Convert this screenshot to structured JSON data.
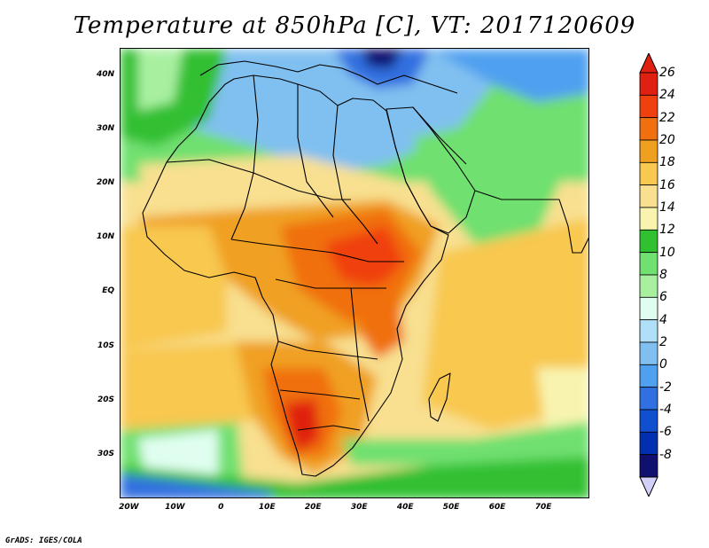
{
  "title": "Temperature at 850hPa [C], VT: 2017120609",
  "credit": "GrADS: IGES/COLA",
  "map": {
    "lon_range": [
      -22,
      80
    ],
    "lat_range": [
      -38,
      45
    ],
    "lat_ticks": [
      {
        "value": 40,
        "label": "40N"
      },
      {
        "value": 30,
        "label": "30N"
      },
      {
        "value": 20,
        "label": "20N"
      },
      {
        "value": 10,
        "label": "10N"
      },
      {
        "value": 0,
        "label": "EQ"
      },
      {
        "value": -10,
        "label": "10S"
      },
      {
        "value": -20,
        "label": "20S"
      },
      {
        "value": -30,
        "label": "30S"
      }
    ],
    "lon_ticks": [
      {
        "value": -20,
        "label": "20W"
      },
      {
        "value": -10,
        "label": "10W"
      },
      {
        "value": 0,
        "label": "0"
      },
      {
        "value": 10,
        "label": "10E"
      },
      {
        "value": 20,
        "label": "20E"
      },
      {
        "value": 30,
        "label": "30E"
      },
      {
        "value": 40,
        "label": "40E"
      },
      {
        "value": 50,
        "label": "50E"
      },
      {
        "value": 60,
        "label": "60E"
      },
      {
        "value": 70,
        "label": "70E"
      }
    ]
  },
  "colorbar": {
    "labels": [
      "26",
      "24",
      "22",
      "20",
      "18",
      "16",
      "14",
      "12",
      "10",
      "8",
      "6",
      "4",
      "2",
      "0",
      "-2",
      "-4",
      "-6",
      "-8"
    ],
    "colors": [
      "#e02010",
      "#f04010",
      "#f07010",
      "#f0a020",
      "#f8c850",
      "#f8e090",
      "#f8f4b0",
      "#30c030",
      "#70e070",
      "#a8f0a0",
      "#e0fef0",
      "#b0e0f8",
      "#80c0f0",
      "#50a0f0",
      "#3070e0",
      "#1050d0",
      "#0030b0",
      "#101070"
    ],
    "top_triangle_color": "#e02010",
    "bottom_triangle_color": "#d0d0f8"
  }
}
